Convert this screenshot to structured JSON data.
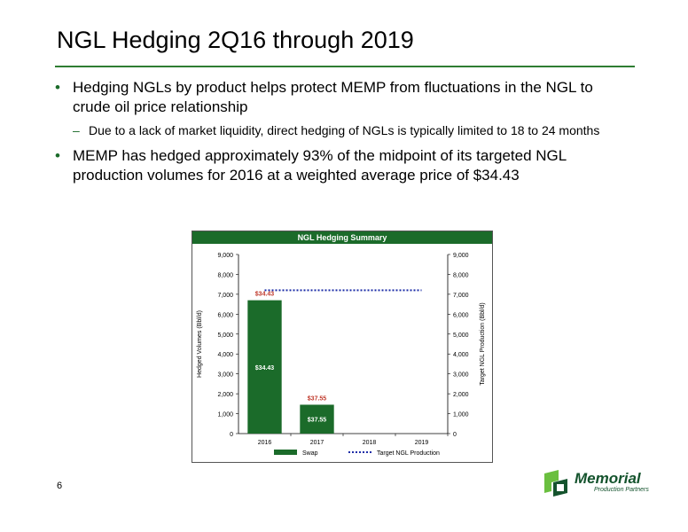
{
  "slide": {
    "title": "NGL Hedging 2Q16 through 2019",
    "page_number": "6",
    "colors": {
      "accent": "#2e7d32",
      "bar": "#1b6b2a",
      "target_line": "#1f2fa8",
      "price_label": "#c0392b"
    }
  },
  "bullets": [
    {
      "text": "Hedging NGLs by product helps protect MEMP from fluctuations in the NGL to crude oil price relationship",
      "sub": "Due to a lack of market liquidity, direct hedging of NGLs is typically limited to 18 to 24 months"
    },
    {
      "text": "MEMP has hedged approximately 93% of the midpoint of its targeted NGL production volumes for 2016 at a weighted average price of $34.43"
    }
  ],
  "logo": {
    "name": "Memorial",
    "subtitle": "Production Partners",
    "icon": "memorial-logo-icon"
  },
  "chart_data": {
    "type": "bar",
    "title": "NGL Hedging Summary",
    "categories": [
      "2016",
      "2017",
      "2018",
      "2019"
    ],
    "series": [
      {
        "name": "Swap",
        "type": "bar",
        "values": [
          6700,
          1450,
          0,
          0
        ],
        "labels": [
          "$34.43",
          "$37.55",
          "",
          ""
        ],
        "price_labels": [
          "$34.43",
          "$37.55",
          "",
          ""
        ]
      },
      {
        "name": "Target NGL Production",
        "type": "line",
        "style": "dotted",
        "values": [
          7200,
          7200,
          7200,
          7200
        ]
      }
    ],
    "ylabel": "Hedged Volumes (Bbl/d)",
    "y2label": "Target NGL Production (Bbl/d)",
    "ylim": [
      0,
      9000
    ],
    "y2lim": [
      0,
      9000
    ],
    "yticks": [
      "0",
      "1,000",
      "2,000",
      "3,000",
      "4,000",
      "5,000",
      "6,000",
      "7,000",
      "8,000",
      "9,000"
    ],
    "grid": false,
    "legend": "bottom"
  }
}
